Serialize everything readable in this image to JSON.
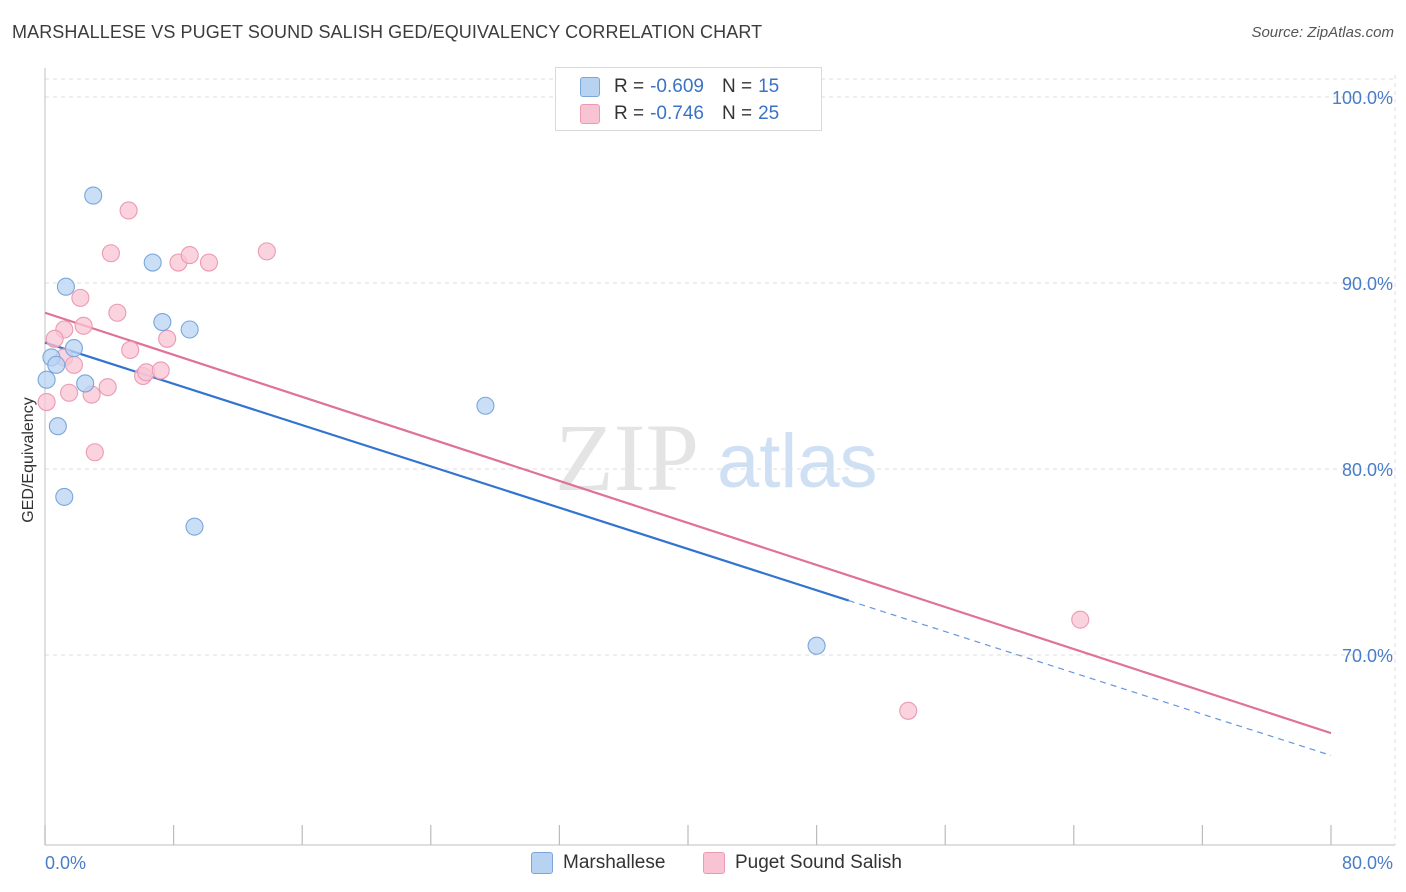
{
  "title": "MARSHALLESE VS PUGET SOUND SALISH GED/EQUIVALENCY CORRELATION CHART",
  "source": "Source: ZipAtlas.com",
  "watermark": {
    "zip": "ZIP",
    "atlas": "atlas"
  },
  "colors": {
    "blue_fill": "#b8d3f2",
    "blue_stroke": "#7aa6dc",
    "blue_line": "#3374d0",
    "pink_fill": "#f8c4d4",
    "pink_stroke": "#eb9ab3",
    "pink_line": "#e0719a",
    "grid": "#dddddd",
    "axis_text": "#4a7cc7"
  },
  "legend": {
    "rows": [
      {
        "r_label": "R =",
        "r_value": "-0.609",
        "n_label": "N =",
        "n_value": "15"
      },
      {
        "r_label": "R =",
        "r_value": "-0.746",
        "n_label": "N =",
        "n_value": "25"
      }
    ]
  },
  "bottom_legend": [
    "Marshallese",
    "Puget Sound Salish"
  ],
  "chart_data": {
    "type": "scatter",
    "title": "MARSHALLESE VS PUGET SOUND SALISH GED/EQUIVALENCY CORRELATION CHART",
    "xlabel": "",
    "ylabel": "GED/Equivalency",
    "xlim": [
      0,
      80
    ],
    "ylim": [
      60.5,
      103
    ],
    "x_tick_labels": [
      "0.0%",
      "80.0%"
    ],
    "y_ticks": [
      70,
      80,
      90,
      100
    ],
    "y_tick_labels": [
      "70.0%",
      "80.0%",
      "90.0%",
      "100.0%"
    ],
    "grid": true,
    "legend_position": "top-center",
    "series": [
      {
        "name": "Marshallese",
        "points": [
          [
            3.0,
            94.7
          ],
          [
            6.7,
            91.1
          ],
          [
            1.3,
            89.8
          ],
          [
            7.3,
            87.9
          ],
          [
            9.0,
            87.5
          ],
          [
            1.8,
            86.5
          ],
          [
            0.4,
            86.0
          ],
          [
            0.7,
            85.6
          ],
          [
            0.1,
            84.8
          ],
          [
            2.5,
            84.6
          ],
          [
            0.8,
            82.3
          ],
          [
            27.4,
            83.4
          ],
          [
            1.2,
            78.5
          ],
          [
            9.3,
            76.9
          ],
          [
            48.0,
            70.5
          ]
        ],
        "trend": {
          "x0": 0,
          "y0": 86.8,
          "x1": 80,
          "y1": 64.6,
          "solid_until": 50.0
        }
      },
      {
        "name": "Puget Sound Salish",
        "points": [
          [
            5.2,
            93.9
          ],
          [
            4.1,
            91.6
          ],
          [
            8.3,
            91.1
          ],
          [
            9.0,
            91.5
          ],
          [
            10.2,
            91.1
          ],
          [
            13.8,
            91.7
          ],
          [
            2.2,
            89.2
          ],
          [
            4.5,
            88.4
          ],
          [
            2.4,
            87.7
          ],
          [
            1.2,
            87.5
          ],
          [
            0.6,
            87.0
          ],
          [
            7.6,
            87.0
          ],
          [
            5.3,
            86.4
          ],
          [
            1.2,
            86.0
          ],
          [
            1.8,
            85.6
          ],
          [
            6.1,
            85.0
          ],
          [
            6.3,
            85.2
          ],
          [
            7.2,
            85.3
          ],
          [
            3.9,
            84.4
          ],
          [
            1.5,
            84.1
          ],
          [
            2.9,
            84.0
          ],
          [
            0.1,
            83.6
          ],
          [
            3.1,
            80.9
          ],
          [
            64.4,
            71.9
          ],
          [
            53.7,
            67.0
          ]
        ],
        "trend": {
          "x0": 0,
          "y0": 88.4,
          "x1": 80,
          "y1": 65.8
        }
      }
    ]
  }
}
